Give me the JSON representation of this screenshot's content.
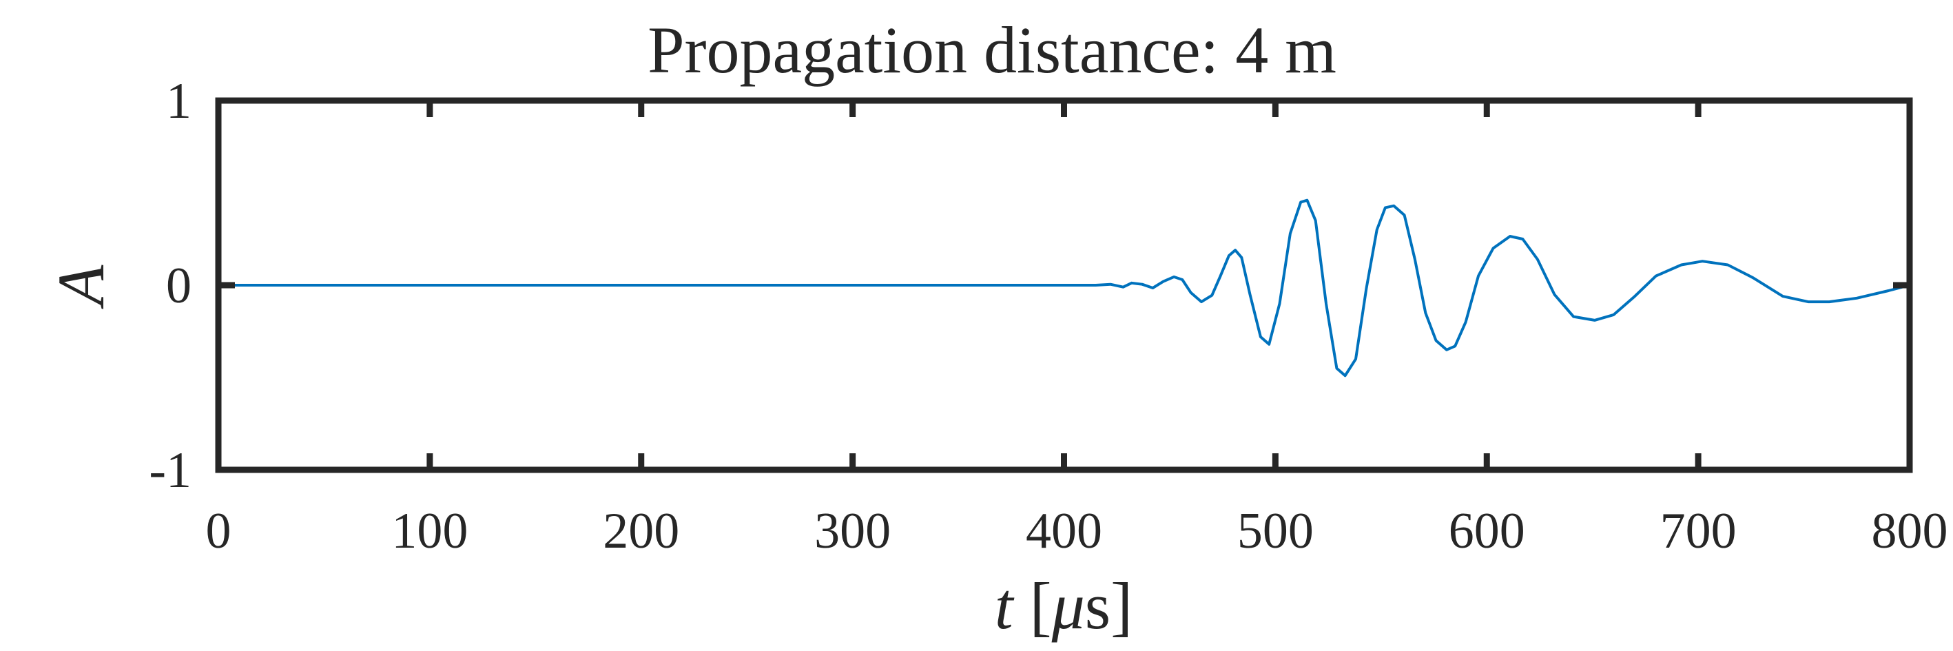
{
  "chart_data": {
    "type": "line",
    "title": "Propagation distance: 4 m",
    "xlabel": {
      "var": "t",
      "unit_open": " [",
      "unit_mu": "μ",
      "unit_rest": "s]"
    },
    "ylabel": "A",
    "xlim": [
      0,
      800
    ],
    "ylim": [
      -1,
      1
    ],
    "xticks": [
      0,
      100,
      200,
      300,
      400,
      500,
      600,
      700,
      800
    ],
    "xtick_labels": [
      "0",
      "100",
      "200",
      "300",
      "400",
      "500",
      "600",
      "700",
      "800"
    ],
    "yticks": [
      1,
      0,
      -1
    ],
    "ytick_labels": [
      "1",
      "0",
      "-1"
    ],
    "grid": false,
    "series": [
      {
        "color": "#0072BD",
        "x": [
          0,
          100,
          200,
          300,
          400,
          415,
          422,
          428,
          432,
          437,
          442,
          447,
          452,
          456,
          460,
          465,
          470,
          474,
          478,
          481,
          484,
          488,
          493,
          497,
          502,
          507,
          512,
          515,
          519,
          524,
          529,
          533,
          538,
          543,
          548,
          552,
          556,
          561,
          566,
          571,
          576,
          581,
          585,
          590,
          596,
          603,
          611,
          617,
          624,
          632,
          641,
          651,
          660,
          670,
          680,
          692,
          702,
          714,
          726,
          740,
          752,
          762,
          775,
          790,
          800
        ],
        "y": [
          0,
          0,
          0,
          0,
          0,
          0,
          0.005,
          -0.01,
          0.012,
          0.005,
          -0.015,
          0.02,
          0.045,
          0.03,
          -0.04,
          -0.09,
          -0.055,
          0.05,
          0.16,
          0.19,
          0.15,
          -0.05,
          -0.28,
          -0.32,
          -0.1,
          0.28,
          0.45,
          0.46,
          0.35,
          -0.1,
          -0.45,
          -0.49,
          -0.4,
          -0.02,
          0.3,
          0.42,
          0.43,
          0.38,
          0.14,
          -0.15,
          -0.3,
          -0.35,
          -0.33,
          -0.2,
          0.05,
          0.2,
          0.265,
          0.25,
          0.14,
          -0.05,
          -0.17,
          -0.19,
          -0.16,
          -0.06,
          0.05,
          0.11,
          0.13,
          0.11,
          0.04,
          -0.06,
          -0.09,
          -0.09,
          -0.07,
          -0.03,
          0
        ]
      }
    ]
  }
}
